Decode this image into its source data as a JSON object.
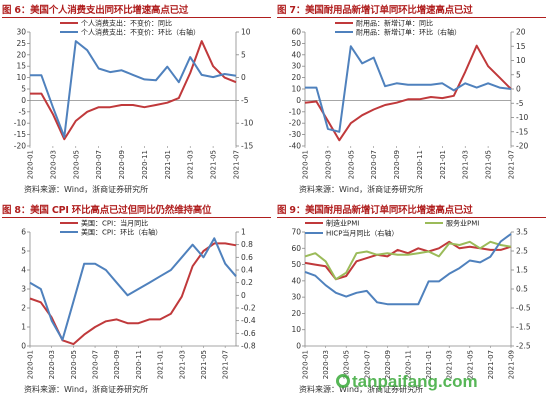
{
  "charts": [
    {
      "id": "p6",
      "title": "图 6：美国个人消费支出同环比增速高点已过",
      "source": "资料来源：Wind，浙商证券研究所",
      "chart_data": {
        "type": "line",
        "x": [
          "2020-01",
          "2020-02",
          "2020-03",
          "2020-04",
          "2020-05",
          "2020-06",
          "2020-07",
          "2020-08",
          "2020-09",
          "2020-10",
          "2020-11",
          "2020-12",
          "2021-01",
          "2021-02",
          "2021-03",
          "2021-04",
          "2021-05",
          "2021-06",
          "2021-07"
        ],
        "xticks": [
          "2020-01",
          "2020-03",
          "2020-05",
          "2020-07",
          "2020-09",
          "2020-11",
          "2021-01",
          "2021-03",
          "2021-05",
          "2021-07"
        ],
        "left_axis": {
          "min": -20,
          "max": 30,
          "ticks": [
            -20,
            -15,
            -10,
            -5,
            0,
            5,
            10,
            15,
            20,
            25,
            30
          ]
        },
        "right_axis": {
          "min": -15,
          "max": 10,
          "ticks": [
            -15,
            -10,
            -5,
            0,
            5,
            10
          ]
        },
        "legend_position": "top-center",
        "series": [
          {
            "name": "个人消费支出：不变价：同比",
            "color": "#c0393b",
            "axis": "left",
            "values": [
              3,
              3,
              -6,
              -17,
              -9,
              -5,
              -3,
              -3,
              -2,
              -2,
              -3,
              -2,
              -1,
              1,
              12,
              26,
              15,
              10,
              8
            ]
          },
          {
            "name": "个人消费支出：不变价：环比（右轴）",
            "color": "#4f81bd",
            "axis": "right",
            "values": [
              0.5,
              0.5,
              -6.5,
              -13,
              8,
              6,
              2,
              1.2,
              1.6,
              0.6,
              -0.4,
              -0.6,
              2.4,
              -1,
              4.5,
              0.6,
              0.1,
              0.8,
              0.4
            ]
          }
        ]
      }
    },
    {
      "id": "p7",
      "title": "图 7：美国耐用品新增订单同环比增速高点已过",
      "source": "资料来源：Wind，浙商证券研究所",
      "chart_data": {
        "type": "line",
        "x": [
          "2020-01",
          "2020-02",
          "2020-03",
          "2020-04",
          "2020-05",
          "2020-06",
          "2020-07",
          "2020-08",
          "2020-09",
          "2020-10",
          "2020-11",
          "2020-12",
          "2021-01",
          "2021-02",
          "2021-03",
          "2021-04",
          "2021-05",
          "2021-06",
          "2021-07"
        ],
        "xticks": [
          "2020-01",
          "2020-03",
          "2020-05",
          "2020-07",
          "2020-09",
          "2020-11",
          "2021-01",
          "2021-03",
          "2021-05",
          "2021-07"
        ],
        "left_axis": {
          "min": -40,
          "max": 60,
          "ticks": [
            -40,
            -30,
            -20,
            -10,
            0,
            10,
            20,
            30,
            40,
            50,
            60
          ]
        },
        "right_axis": {
          "min": -20,
          "max": 20,
          "ticks": [
            -20,
            -15,
            -10,
            -5,
            0,
            5,
            10,
            15,
            20
          ]
        },
        "legend_position": "top-center",
        "series": [
          {
            "name": "耐用品：新增订单：同比",
            "color": "#c0393b",
            "axis": "left",
            "values": [
              -2,
              -1,
              -18,
              -35,
              -20,
              -13,
              -8,
              -4,
              -2,
              1,
              1,
              3,
              2,
              4,
              25,
              48,
              30,
              20,
              10
            ]
          },
          {
            "name": "耐用品：新增订单：环比（右轴）",
            "color": "#4f81bd",
            "axis": "right",
            "values": [
              0.5,
              0.5,
              -14,
              -15,
              15,
              9,
              11,
              1,
              2,
              1.5,
              1.5,
              1.5,
              2,
              -0.5,
              2,
              0.5,
              2,
              0.5,
              0
            ]
          }
        ]
      }
    },
    {
      "id": "p8",
      "title": "图 8：美国 CPI 环比高点已过但同比仍然维持高位",
      "source": "资料来源：Wind，浙商证券研究所",
      "chart_data": {
        "type": "line",
        "x": [
          "2020-01",
          "2020-02",
          "2020-03",
          "2020-04",
          "2020-05",
          "2020-06",
          "2020-07",
          "2020-08",
          "2020-09",
          "2020-10",
          "2020-11",
          "2020-12",
          "2021-01",
          "2021-02",
          "2021-03",
          "2021-04",
          "2021-05",
          "2021-06",
          "2021-07",
          "2021-08"
        ],
        "xticks": [
          "2020-01",
          "2020-03",
          "2020-05",
          "2020-07",
          "2020-09",
          "2020-11",
          "2021-01",
          "2021-03",
          "2021-05",
          "2021-07"
        ],
        "left_axis": {
          "min": 0,
          "max": 6,
          "ticks": [
            0,
            1,
            2,
            3,
            4,
            5,
            6
          ]
        },
        "right_axis": {
          "min": -0.8,
          "max": 1.0,
          "ticks": [
            -0.8,
            -0.6,
            -0.4,
            -0.2,
            0.0,
            0.2,
            0.4,
            0.6,
            0.8,
            1.0
          ]
        },
        "legend_position": "top-center",
        "series": [
          {
            "name": "美国：CPI：当月同比",
            "color": "#c0393b",
            "axis": "left",
            "values": [
              2.5,
              2.3,
              1.5,
              0.3,
              0.1,
              0.6,
              1.0,
              1.3,
              1.4,
              1.2,
              1.2,
              1.4,
              1.4,
              1.7,
              2.6,
              4.2,
              5.0,
              5.4,
              5.4,
              5.3
            ]
          },
          {
            "name": "美国：CPI：环比（右轴）",
            "color": "#4f81bd",
            "axis": "right",
            "values": [
              0.2,
              0.1,
              -0.4,
              -0.7,
              -0.1,
              0.5,
              0.5,
              0.4,
              0.2,
              0.0,
              0.1,
              0.2,
              0.3,
              0.4,
              0.6,
              0.8,
              0.6,
              0.9,
              0.5,
              0.3
            ]
          }
        ]
      }
    },
    {
      "id": "p9",
      "title": "图 9：美国耐用品新增订单同环比增速高点已过",
      "source": "资料来源：Wind，浙商证券研究所",
      "chart_data": {
        "type": "line",
        "x": [
          "2020-01",
          "2020-02",
          "2020-03",
          "2020-04",
          "2020-05",
          "2020-06",
          "2020-07",
          "2020-08",
          "2020-09",
          "2020-10",
          "2020-11",
          "2020-12",
          "2021-01",
          "2021-02",
          "2021-03",
          "2021-04",
          "2021-05",
          "2021-06",
          "2021-07",
          "2021-08",
          "2021-09"
        ],
        "xticks": [
          "2020-01",
          "2020-03",
          "2020-05",
          "2020-07",
          "2020-09",
          "2020-11",
          "2021-01",
          "2021-03",
          "2021-05",
          "2021-07",
          "2021-09"
        ],
        "left_axis": {
          "min": 0,
          "max": 70,
          "ticks": [
            0,
            10,
            20,
            30,
            40,
            50,
            60,
            70
          ]
        },
        "right_axis": {
          "min": -2.5,
          "max": 3.5,
          "ticks": [
            -2.5,
            -1.5,
            -0.5,
            0.5,
            1.5,
            2.5,
            3.5
          ]
        },
        "legend_position": "top",
        "series": [
          {
            "name": "制造业PMI",
            "color": "#c0393b",
            "axis": "left",
            "values": [
              51,
              50,
              49,
              41,
              43,
              52,
              54,
              56,
              55,
              59,
              57,
              60,
              58,
              60,
              64,
              60,
              61,
              60,
              59,
              59,
              61
            ]
          },
          {
            "name": "服务业PMI",
            "color": "#9bbb59",
            "axis": "left",
            "values": [
              55,
              57,
              52,
              41,
              45,
              57,
              58,
              56,
              57,
              56,
              56,
              57,
              58,
              55,
              63,
              62,
              64,
              60,
              64,
              62,
              61
            ]
          },
          {
            "name": "HICP当月同比（右轴）",
            "color": "#4f81bd",
            "axis": "right",
            "values": [
              1.4,
              1.2,
              0.7,
              0.3,
              0.1,
              0.3,
              0.4,
              -0.2,
              -0.3,
              -0.3,
              -0.3,
              -0.3,
              0.9,
              0.9,
              1.3,
              1.6,
              2.0,
              1.9,
              2.2,
              3.0,
              3.4
            ]
          }
        ]
      }
    }
  ],
  "watermark": {
    "text": "tanpaifang.com"
  }
}
